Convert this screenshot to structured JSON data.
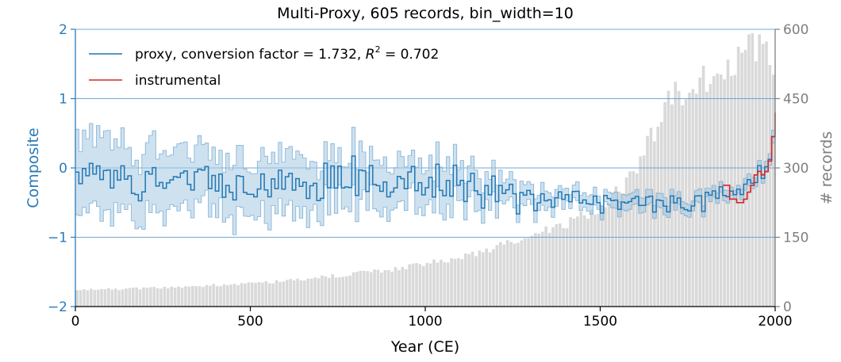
{
  "chart_data": {
    "type": "line",
    "title": "Multi-Proxy,  605 records, bin_width=10",
    "xlabel": "Year (CE)",
    "ylabel": "Composite",
    "ylabel_right": "# records",
    "xlim": [
      0,
      2000
    ],
    "ylim": [
      -2,
      2
    ],
    "ylim_right": [
      0,
      600
    ],
    "bin_width": 10,
    "x_ticks": [
      "0",
      "500",
      "1000",
      "1500",
      "2000"
    ],
    "y_ticks": [
      "−2",
      "−1",
      "0",
      "1",
      "2"
    ],
    "y_right_ticks": [
      "0",
      "150",
      "300",
      "450",
      "600"
    ],
    "grid": "horizontal at ±1, 0, +2",
    "legend": [
      {
        "label": "proxy, conversion factor = 1.732, ",
        "label_r2": "R",
        "label_sup": "2",
        "label_tail": " = 0.702",
        "color": "#1f77b4"
      },
      {
        "label": "instrumental",
        "color": "#d62728"
      }
    ],
    "series": [
      {
        "name": "proxy",
        "color": "#1f77b4",
        "band_color": "#a6c9e2",
        "anchors_x": [
          0,
          100,
          200,
          300,
          400,
          500,
          600,
          700,
          800,
          900,
          1000,
          1100,
          1200,
          1300,
          1400,
          1450,
          1500,
          1600,
          1700,
          1800,
          1850,
          1900,
          1950,
          1990,
          2000
        ],
        "anchors_y": [
          -0.15,
          -0.15,
          -0.2,
          -0.2,
          -0.2,
          -0.3,
          -0.3,
          -0.2,
          -0.15,
          -0.15,
          -0.2,
          -0.25,
          -0.3,
          -0.45,
          -0.4,
          -0.35,
          -0.5,
          -0.45,
          -0.55,
          -0.5,
          -0.4,
          -0.3,
          -0.05,
          -0.05,
          0.6
        ],
        "anchors_halfwidth": [
          0.5,
          0.5,
          0.45,
          0.45,
          0.42,
          0.4,
          0.4,
          0.35,
          0.35,
          0.3,
          0.3,
          0.28,
          0.2,
          0.15,
          0.12,
          0.12,
          0.12,
          0.1,
          0.1,
          0.08,
          0.08,
          0.07,
          0.07,
          0.07,
          0.1
        ],
        "noise_amp": 0.35
      },
      {
        "name": "instrumental",
        "color": "#d62728",
        "x": [
          1850,
          1860,
          1870,
          1880,
          1890,
          1900,
          1910,
          1920,
          1930,
          1940,
          1950,
          1960,
          1970,
          1980,
          1990,
          2000
        ],
        "y": [
          -0.25,
          -0.25,
          -0.45,
          -0.45,
          -0.5,
          -0.5,
          -0.45,
          -0.35,
          -0.25,
          -0.1,
          -0.05,
          -0.1,
          -0.05,
          0.1,
          0.45,
          0.8
        ]
      }
    ],
    "records_bars": {
      "color": "#d9d9d9",
      "anchors_x": [
        0,
        300,
        600,
        900,
        1100,
        1300,
        1400,
        1500,
        1600,
        1700,
        1800,
        1900,
        1950,
        1970,
        2000
      ],
      "anchors_y": [
        35,
        42,
        55,
        80,
        105,
        150,
        180,
        210,
        290,
        450,
        490,
        545,
        560,
        540,
        520
      ]
    }
  }
}
